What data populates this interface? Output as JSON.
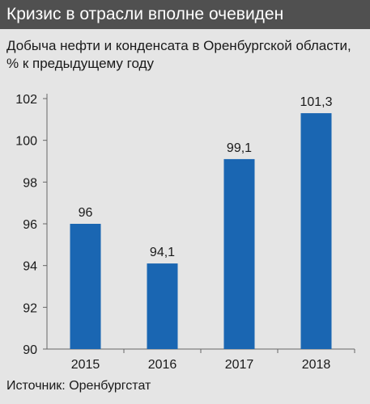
{
  "header": {
    "title": "Кризис в отрасли вполне очевиден"
  },
  "subtitle": "Добыча нефти и конденсата в Оренбургской области, % к предыдущему году",
  "source": "Источник: Оренбургстат",
  "colors": {
    "bar": "#1a66b2",
    "header_bg": "#505050",
    "panel_bg": "#e5e5e5",
    "axis": "#666666"
  },
  "chart_data": {
    "type": "bar",
    "categories": [
      "2015",
      "2016",
      "2017",
      "2018"
    ],
    "values": [
      96,
      94.1,
      99.1,
      101.3
    ],
    "value_labels": [
      "96",
      "94,1",
      "99,1",
      "101,3"
    ],
    "ylim": [
      90,
      102
    ],
    "yticks": [
      90,
      92,
      94,
      96,
      98,
      100,
      102
    ],
    "grid": false,
    "title": "Добыча нефти и конденсата в Оренбургской области, % к предыдущему году",
    "xlabel": "",
    "ylabel": ""
  }
}
